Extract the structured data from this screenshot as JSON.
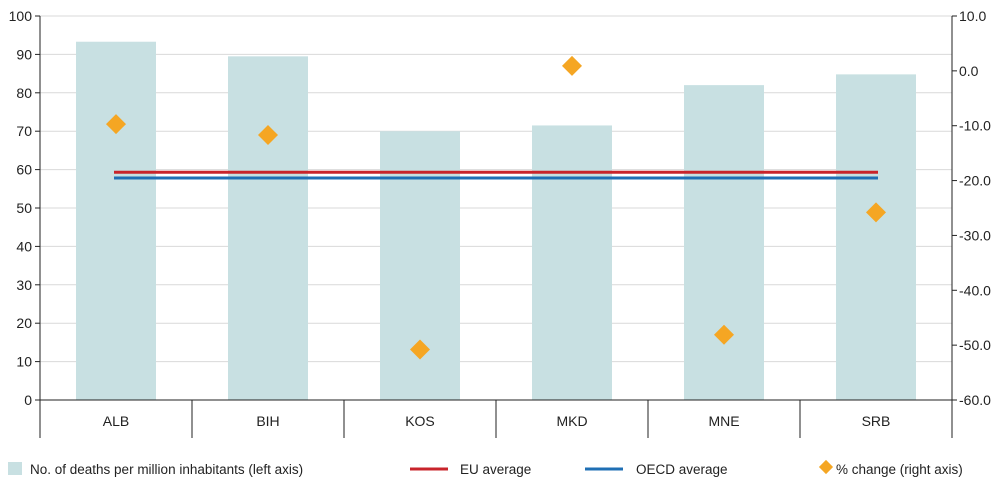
{
  "colors": {
    "bar": "#c8e0e2",
    "eu": "#c8242b",
    "oecd": "#1f6fb4",
    "marker": "#f5a623",
    "grid": "#d9d9d9",
    "axis": "#222222"
  },
  "chart_data": {
    "type": "bar",
    "categories": [
      "ALB",
      "BIH",
      "KOS",
      "MKD",
      "MNE",
      "SRB"
    ],
    "series": [
      {
        "name": "No. of deaths per million inhabitants (left axis)",
        "kind": "bar",
        "axis": "left",
        "values": [
          93.3,
          89.5,
          70.0,
          71.5,
          82.0,
          84.8
        ]
      },
      {
        "name": "EU average",
        "kind": "line",
        "axis": "left",
        "values": [
          59.3,
          59.3,
          59.3,
          59.3,
          59.3,
          59.3
        ]
      },
      {
        "name": "OECD average",
        "kind": "line",
        "axis": "left",
        "values": [
          57.8,
          57.8,
          57.8,
          57.8,
          57.8,
          57.8
        ]
      },
      {
        "name": "% change (right axis)",
        "kind": "marker",
        "axis": "right",
        "values": [
          -9.7,
          -11.7,
          -50.8,
          0.9,
          -48.1,
          -25.8
        ]
      }
    ],
    "y_left": {
      "min": 0,
      "max": 100,
      "ticks": [
        "0",
        "10",
        "20",
        "30",
        "40",
        "50",
        "60",
        "70",
        "80",
        "90",
        "100"
      ]
    },
    "y_right": {
      "min": -60,
      "max": 10,
      "ticks": [
        "-60.0",
        "-50.0",
        "-40.0",
        "-30.0",
        "-20.0",
        "-10.0",
        "0.0",
        "10.0"
      ]
    },
    "grid": true,
    "legend_position": "bottom"
  }
}
